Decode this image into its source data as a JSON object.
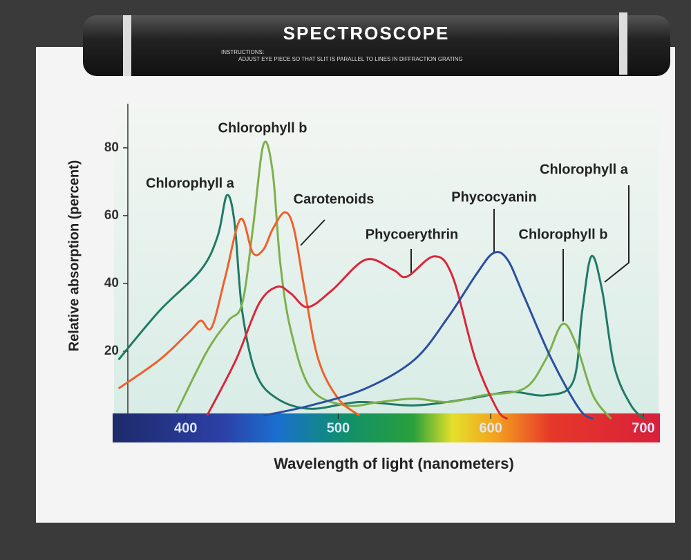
{
  "spectroscope": {
    "title": "SPECTROSCOPE",
    "instructions_label": "INSTRUCTIONS:",
    "instructions": "ADJUST EYE PIECE SO THAT SLIT IS PARALLEL TO LINES IN DIFFRACTION GRATING"
  },
  "chart_data": {
    "type": "line",
    "xlabel": "Wavelength of light (nanometers)",
    "ylabel": "Relative absorption (percent)",
    "xlim": [
      353,
      710
    ],
    "xticks": [
      400,
      500,
      600,
      700
    ],
    "ylim": [
      0,
      92
    ],
    "yticks": [
      20,
      40,
      60,
      80
    ],
    "series": [
      {
        "name": "Chlorophyll a",
        "color": "#1f7a64",
        "x": [
          356,
          383,
          410,
          421,
          427,
          432,
          437,
          446,
          460,
          482,
          514,
          550,
          586,
          613,
          636,
          654,
          660,
          666,
          673,
          681,
          692,
          701
        ],
        "values": [
          17.5,
          32,
          44,
          54,
          66,
          58,
          32,
          13.5,
          6,
          3,
          5,
          4,
          6,
          8,
          7,
          11,
          32,
          48,
          38,
          15.5,
          4,
          0
        ]
      },
      {
        "name": "Chlorophyll b",
        "color": "#7db04a",
        "x": [
          394,
          414,
          428,
          437,
          444,
          451,
          457,
          462,
          469,
          482,
          505,
          527,
          550,
          572,
          595,
          622,
          636,
          647,
          656,
          667,
          679
        ],
        "values": [
          2,
          20,
          29,
          34,
          56,
          81,
          73,
          46,
          26,
          9,
          4,
          5,
          6,
          5,
          7,
          9,
          17.5,
          28,
          22,
          7,
          0
        ]
      },
      {
        "name": "Carotenoids",
        "color": "#f0602a",
        "x": [
          356,
          383,
          403,
          410,
          417,
          426,
          436,
          444,
          451,
          457,
          465,
          471,
          478,
          487,
          500,
          514
        ],
        "values": [
          9,
          17.5,
          26,
          29,
          27,
          42,
          59,
          49,
          50,
          56,
          61,
          56,
          38,
          17.5,
          6,
          1
        ]
      },
      {
        "name": "Phycoerythrin",
        "color": "#d9263a",
        "x": [
          414,
          433,
          448,
          460,
          469,
          480,
          496,
          518,
          536,
          545,
          563,
          575,
          590,
          604,
          611
        ],
        "values": [
          1,
          17.5,
          34,
          39,
          37,
          33,
          38,
          47,
          44,
          42,
          48,
          42,
          17.5,
          3,
          0
        ]
      },
      {
        "name": "Phycocyanin",
        "color": "#2a4fa0",
        "x": [
          451,
          482,
          518,
          550,
          572,
          591,
          602,
          611,
          622,
          640,
          658,
          667
        ],
        "values": [
          1,
          4,
          9,
          17.5,
          30,
          43,
          49,
          47,
          36,
          17.5,
          3,
          0
        ]
      }
    ],
    "annotations": [
      "Chlorophyll b",
      "Chlorophyll a",
      "Carotenoids",
      "Phycoerythrin",
      "Phycocyanin",
      "Chlorophyll a",
      "Chlorophyll b"
    ]
  }
}
